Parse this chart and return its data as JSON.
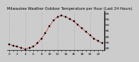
{
  "title": "Milwaukee Weather Outdoor Temperature per Hour (Last 24 Hours)",
  "hours": [
    0,
    1,
    2,
    3,
    4,
    5,
    6,
    7,
    8,
    9,
    10,
    11,
    12,
    13,
    14,
    15,
    16,
    17,
    18,
    19,
    20,
    21,
    22,
    23
  ],
  "temps": [
    33,
    32,
    31,
    30,
    29,
    30,
    31,
    34,
    38,
    43,
    49,
    54,
    57,
    58,
    57,
    55,
    53,
    50,
    47,
    44,
    41,
    38,
    36,
    34
  ],
  "line_color": "#dd0000",
  "marker_color": "#000000",
  "background_color": "#cccccc",
  "plot_bg_color": "#cccccc",
  "grid_color": "#888888",
  "spine_color": "#000000",
  "ylim": [
    28,
    62
  ],
  "yticks": [
    30,
    35,
    40,
    45,
    50,
    55,
    60
  ],
  "xticks": [
    0,
    1,
    2,
    3,
    4,
    5,
    6,
    7,
    8,
    9,
    10,
    11,
    12,
    13,
    14,
    15,
    16,
    17,
    18,
    19,
    20,
    21,
    22,
    23
  ],
  "vgrid_positions": [
    0,
    4,
    8,
    12,
    16,
    20
  ],
  "title_fontsize": 3.8,
  "tick_fontsize": 3.2,
  "line_width": 0.7,
  "marker_size": 1.5
}
